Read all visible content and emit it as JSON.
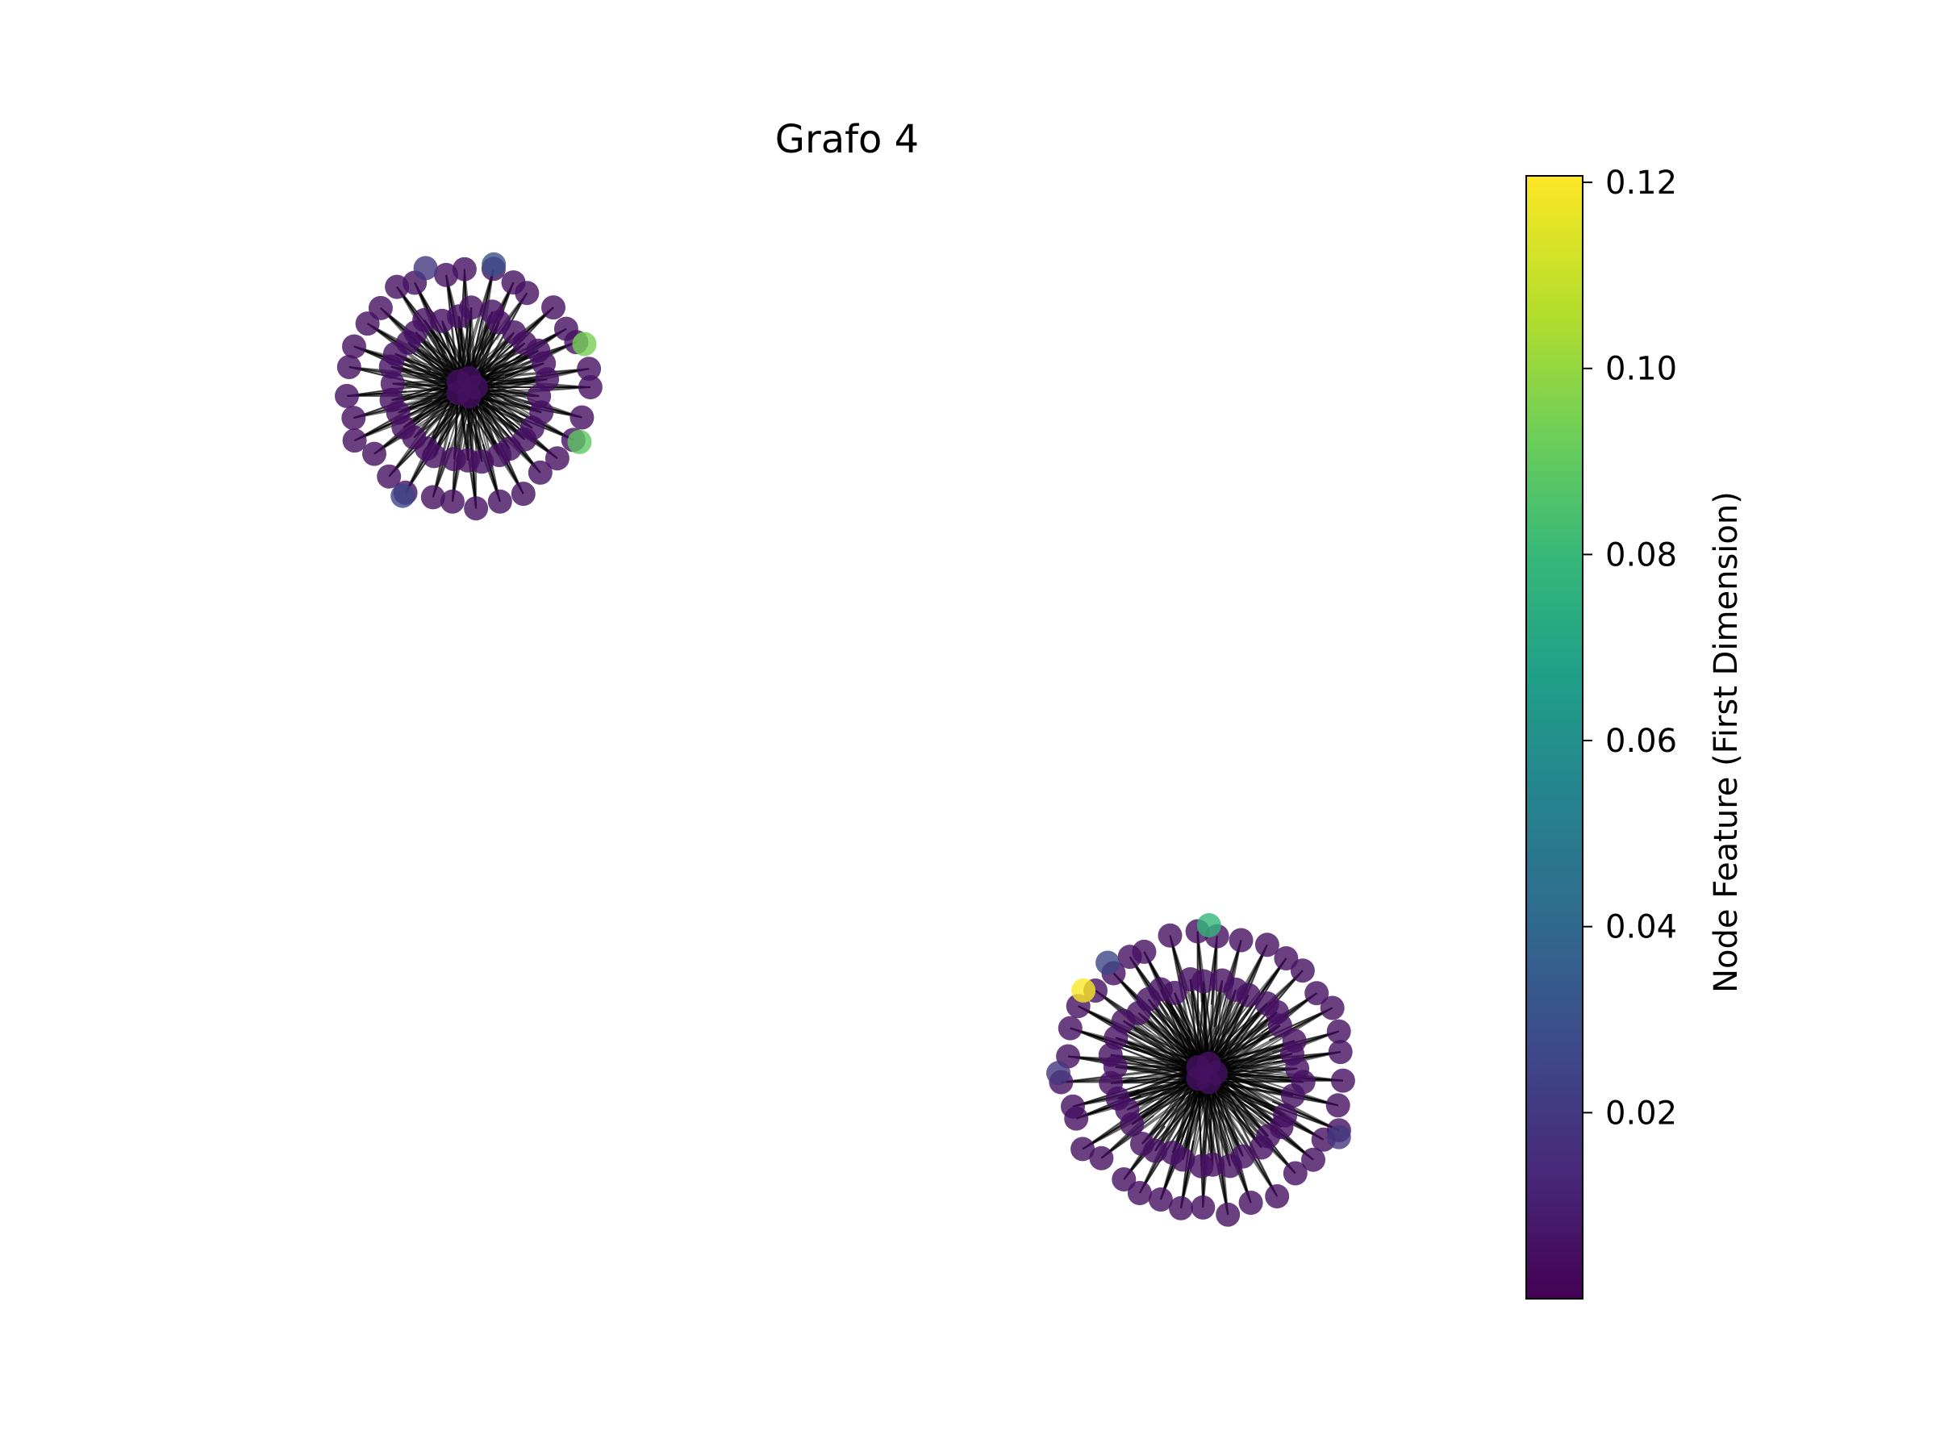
{
  "chart_data": {
    "type": "network",
    "title": "Grafo 4",
    "colorbar": {
      "label": "Node Feature (First Dimension)",
      "colormap": "viridis",
      "range": [
        0.0,
        0.1207
      ],
      "ticks": [
        "0.02",
        "0.04",
        "0.06",
        "0.08",
        "0.10",
        "0.12"
      ],
      "tick_values": [
        0.02,
        0.04,
        0.06,
        0.08,
        0.1,
        0.12
      ]
    },
    "components": [
      {
        "name": "upper-left cluster",
        "ring_node_count": 62,
        "center_node_count": 5,
        "highlighted_nodes": [
          {
            "value": 0.095
          },
          {
            "value": 0.09
          },
          {
            "value": 0.03
          },
          {
            "value": 0.025
          },
          {
            "value": 0.02
          }
        ]
      },
      {
        "name": "lower-right cluster",
        "ring_node_count": 74,
        "center_node_count": 5,
        "highlighted_nodes": [
          {
            "value": 0.12
          },
          {
            "value": 0.08
          },
          {
            "value": 0.025
          },
          {
            "value": 0.02
          },
          {
            "value": 0.02
          }
        ]
      }
    ],
    "base_node_value": 0.005,
    "edge_color": "#000000",
    "node_alpha": 0.8
  }
}
